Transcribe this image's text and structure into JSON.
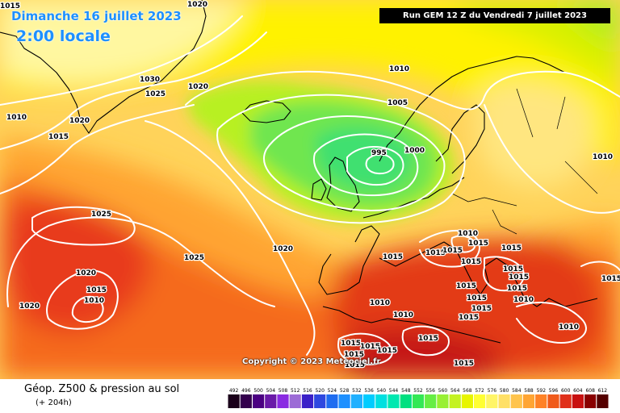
{
  "header": {
    "date": "Dimanche 16 juillet 2023",
    "time": "2:00 locale",
    "run": "Run GEM 12 Z du Vendredi 7 juillet 2023"
  },
  "copyright": "Copyright © 2023 Meteociel.fr",
  "footer": {
    "title": "Géop. Z500 & pression au sol",
    "subtitle": "(+ 204h)"
  },
  "legend": {
    "tick_labels": [
      "492",
      "496",
      "500",
      "504",
      "508",
      "512",
      "516",
      "520",
      "524",
      "528",
      "532",
      "536",
      "540",
      "544",
      "548",
      "552",
      "556",
      "560",
      "564",
      "568",
      "572",
      "576",
      "580",
      "584",
      "588",
      "592",
      "596",
      "600",
      "604",
      "608",
      "612"
    ],
    "colors": [
      "#1a001a",
      "#33004d",
      "#4b0082",
      "#6a1aa8",
      "#8a2be2",
      "#9c6bd6",
      "#3a20c8",
      "#2e48e0",
      "#1e6cf0",
      "#1e90ff",
      "#20b0ff",
      "#00ccff",
      "#00e0e0",
      "#00e8b0",
      "#00e080",
      "#33e855",
      "#66ee44",
      "#99f033",
      "#c4f222",
      "#e8f500",
      "#ffff33",
      "#fff566",
      "#ffe066",
      "#ffc44d",
      "#ffa533",
      "#ff8226",
      "#f05a1a",
      "#e0301a",
      "#c81010",
      "#8a0000",
      "#550000"
    ]
  },
  "isobars": [
    "1020",
    "1030",
    "1025",
    "1020",
    "1010",
    "1020",
    "1015",
    "1015",
    "1010",
    "1005",
    "995",
    "1000",
    "1010",
    "1025",
    "1025",
    "1020",
    "1020",
    "1015",
    "1010",
    "1020",
    "1015",
    "1010",
    "1015",
    "1015",
    "1015",
    "1015",
    "1015",
    "1015",
    "1015",
    "1015",
    "1015",
    "1015",
    "1015",
    "1015",
    "1010",
    "1010",
    "1015",
    "1015",
    "1015",
    "1015",
    "1015",
    "1015",
    "1010",
    "1015",
    "1010",
    "1015"
  ]
}
